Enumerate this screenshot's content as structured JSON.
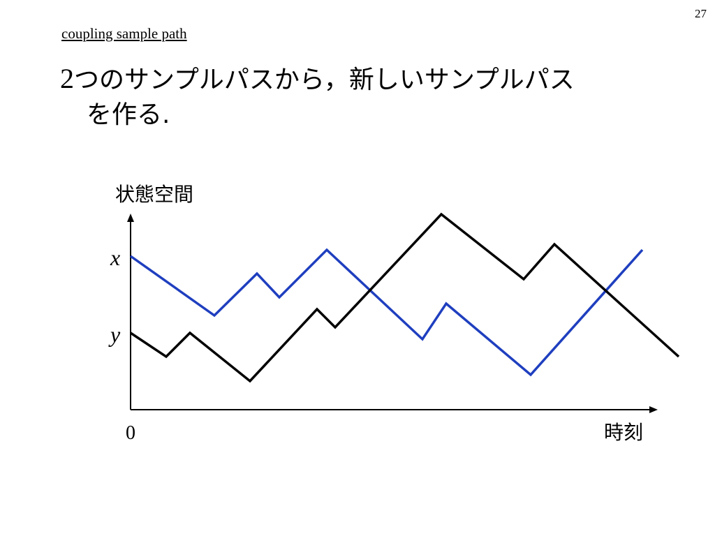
{
  "slide": {
    "page_number": "27",
    "section_link": "coupling sample path",
    "heading": {
      "number": "2",
      "line1": "つのサンプルパスから，新しいサンプルパス",
      "line2": "を作る."
    }
  },
  "diagram": {
    "y_axis_label": "状態空間",
    "x_axis_label": "時刻",
    "origin_label": "0",
    "x_marker": "x",
    "y_marker": "y",
    "colors": {
      "blue_path": "#1f3fbf",
      "black_path": "#000000",
      "axis": "#000000"
    }
  }
}
